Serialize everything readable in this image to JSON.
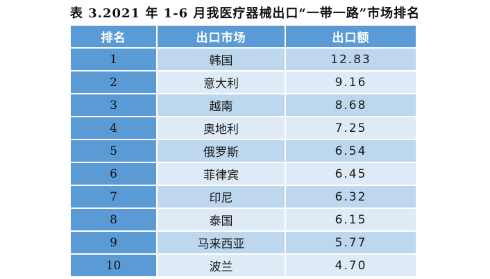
{
  "caption": "表 3.2021 年 1-6 月我医疗器械出口“一带一路”市场排名",
  "table": {
    "headers": [
      "排名",
      "出口市场",
      "出口额"
    ],
    "rows": [
      {
        "rank": "1",
        "market": "韩国",
        "value": "12.83"
      },
      {
        "rank": "2",
        "market": "意大利",
        "value": "9.16"
      },
      {
        "rank": "3",
        "market": "越南",
        "value": "8.68"
      },
      {
        "rank": "4",
        "market": "奥地利",
        "value": "7.25"
      },
      {
        "rank": "5",
        "market": "俄罗斯",
        "value": "6.54"
      },
      {
        "rank": "6",
        "market": "菲律宾",
        "value": "6.45"
      },
      {
        "rank": "7",
        "market": "印尼",
        "value": "6.32"
      },
      {
        "rank": "8",
        "market": "泰国",
        "value": "6.15"
      },
      {
        "rank": "9",
        "market": "马来西亚",
        "value": "5.77"
      },
      {
        "rank": "10",
        "market": "波兰",
        "value": "4.70"
      }
    ]
  },
  "colors": {
    "header_blue": "#5b9bd5",
    "row_light": "#bdd7ee",
    "row_lighter": "#deebf7"
  }
}
